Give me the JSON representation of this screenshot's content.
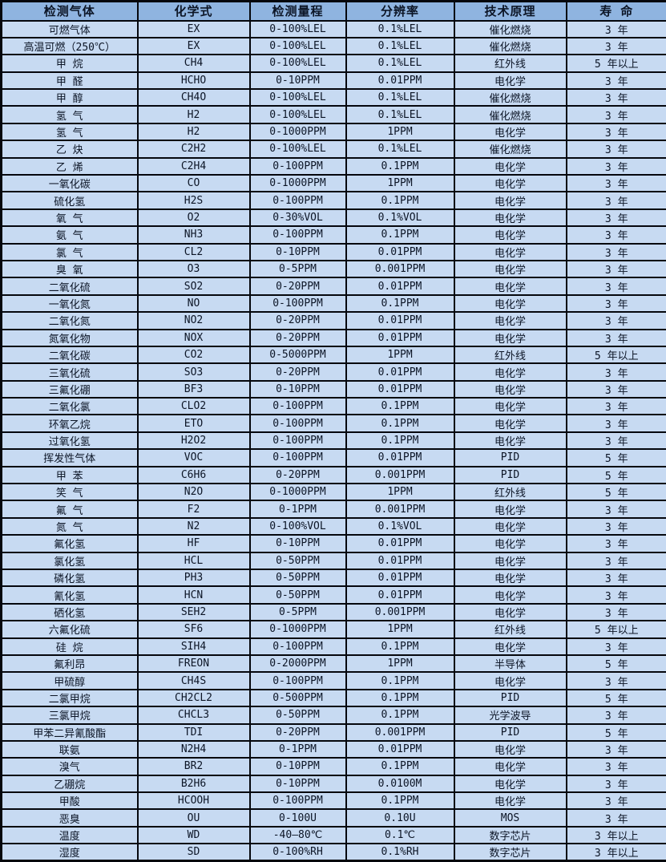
{
  "colors": {
    "header_bg": "#8fb4e0",
    "row_bg": "#c7daf2",
    "border": "#05070d",
    "text": "#0c1526"
  },
  "table": {
    "headers": [
      "检测气体",
      "化学式",
      "检测量程",
      "分辨率",
      "技术原理",
      "寿 命"
    ],
    "rows": [
      [
        "可燃气体",
        "EX",
        "0-100%LEL",
        "0.1%LEL",
        "催化燃烧",
        "3 年"
      ],
      [
        "高温可燃（250℃）",
        "EX",
        "0-100%LEL",
        "0.1%LEL",
        "催化燃烧",
        "3 年"
      ],
      [
        "甲 烷",
        "CH4",
        "0-100%LEL",
        "0.1%LEL",
        "红外线",
        "5 年以上"
      ],
      [
        "甲 醛",
        "HCHO",
        "0-10PPM",
        "0.01PPM",
        "电化学",
        "3 年"
      ],
      [
        "甲 醇",
        "CH4O",
        "0-100%LEL",
        "0.1%LEL",
        "催化燃烧",
        "3 年"
      ],
      [
        "氢 气",
        "H2",
        "0-100%LEL",
        "0.1%LEL",
        "催化燃烧",
        "3 年"
      ],
      [
        "氢 气",
        "H2",
        "0-1000PPM",
        "1PPM",
        "电化学",
        "3 年"
      ],
      [
        "乙 炔",
        "C2H2",
        "0-100%LEL",
        "0.1%LEL",
        "催化燃烧",
        "3 年"
      ],
      [
        "乙 烯",
        "C2H4",
        "0-100PPM",
        "0.1PPM",
        "电化学",
        "3 年"
      ],
      [
        "一氧化碳",
        "CO",
        "0-1000PPM",
        "1PPM",
        "电化学",
        "3 年"
      ],
      [
        "硫化氢",
        "H2S",
        "0-100PPM",
        "0.1PPM",
        "电化学",
        "3 年"
      ],
      [
        "氧 气",
        "O2",
        "0-30%VOL",
        "0.1%VOL",
        "电化学",
        "3 年"
      ],
      [
        "氨 气",
        "NH3",
        "0-100PPM",
        "0.1PPM",
        "电化学",
        "3 年"
      ],
      [
        "氯 气",
        "CL2",
        "0-10PPM",
        "0.01PPM",
        "电化学",
        "3 年"
      ],
      [
        "臭 氧",
        "O3",
        "0-5PPM",
        "0.001PPM",
        "电化学",
        "3 年"
      ],
      [
        "二氧化硫",
        "SO2",
        "0-20PPM",
        "0.01PPM",
        "电化学",
        "3 年"
      ],
      [
        "一氧化氮",
        "NO",
        "0-100PPM",
        "0.1PPM",
        "电化学",
        "3 年"
      ],
      [
        "二氧化氮",
        "NO2",
        "0-20PPM",
        "0.01PPM",
        "电化学",
        "3 年"
      ],
      [
        "氮氧化物",
        "NOX",
        "0-20PPM",
        "0.01PPM",
        "电化学",
        "3 年"
      ],
      [
        "二氧化碳",
        "CO2",
        "0-5000PPM",
        "1PPM",
        "红外线",
        "5 年以上"
      ],
      [
        "三氧化硫",
        "SO3",
        "0-20PPM",
        "0.01PPM",
        "电化学",
        "3 年"
      ],
      [
        "三氟化硼",
        "BF3",
        "0-10PPM",
        "0.01PPM",
        "电化学",
        "3 年"
      ],
      [
        "二氧化氯",
        "CLO2",
        "0-100PPM",
        "0.1PPM",
        "电化学",
        "3 年"
      ],
      [
        "环氧乙烷",
        "ETO",
        "0-100PPM",
        "0.1PPM",
        "电化学",
        "3 年"
      ],
      [
        "过氧化氢",
        "H2O2",
        "0-100PPM",
        "0.1PPM",
        "电化学",
        "3 年"
      ],
      [
        "挥发性气体",
        "VOC",
        "0-100PPM",
        "0.01PPM",
        "PID",
        "5 年"
      ],
      [
        "甲 苯",
        "C6H6",
        "0-20PPM",
        "0.001PPM",
        "PID",
        "5 年"
      ],
      [
        "笑 气",
        "N2O",
        "0-1000PPM",
        "1PPM",
        "红外线",
        "5 年"
      ],
      [
        "氟 气",
        "F2",
        "0-1PPM",
        "0.001PPM",
        "电化学",
        "3 年"
      ],
      [
        "氮 气",
        "N2",
        "0-100%VOL",
        "0.1%VOL",
        "电化学",
        "3 年"
      ],
      [
        "氟化氢",
        "HF",
        "0-10PPM",
        "0.01PPM",
        "电化学",
        "3 年"
      ],
      [
        "氯化氢",
        "HCL",
        "0-50PPM",
        "0.01PPM",
        "电化学",
        "3 年"
      ],
      [
        "磷化氢",
        "PH3",
        "0-50PPM",
        "0.01PPM",
        "电化学",
        "3 年"
      ],
      [
        "氰化氢",
        "HCN",
        "0-50PPM",
        "0.01PPM",
        "电化学",
        "3 年"
      ],
      [
        "硒化氢",
        "SEH2",
        "0-5PPM",
        "0.001PPM",
        "电化学",
        "3 年"
      ],
      [
        "六氟化硫",
        "SF6",
        "0-1000PPM",
        "1PPM",
        "红外线",
        "5 年以上"
      ],
      [
        "硅 烷",
        "SIH4",
        "0-100PPM",
        "0.1PPM",
        "电化学",
        "3 年"
      ],
      [
        "氟利昂",
        "FREON",
        "0-2000PPM",
        "1PPM",
        "半导体",
        "5 年"
      ],
      [
        "甲硫醇",
        "CH4S",
        "0-100PPM",
        "0.1PPM",
        "电化学",
        "3 年"
      ],
      [
        "二氯甲烷",
        "CH2CL2",
        "0-500PPM",
        "0.1PPM",
        "PID",
        "5 年"
      ],
      [
        "三氯甲烷",
        "CHCL3",
        "0-50PPM",
        "0.1PPM",
        "光学波导",
        "3 年"
      ],
      [
        "甲苯二异氰酸酯",
        "TDI",
        "0-20PPM",
        "0.001PPM",
        "PID",
        "5 年"
      ],
      [
        "联氨",
        "N2H4",
        "0-1PPM",
        "0.01PPM",
        "电化学",
        "3 年"
      ],
      [
        "溴气",
        "BR2",
        "0-10PPM",
        "0.1PPM",
        "电化学",
        "3 年"
      ],
      [
        "乙硼烷",
        "B2H6",
        "0-10PPM",
        "0.0100M",
        "电化学",
        "3 年"
      ],
      [
        "甲酸",
        "HCOOH",
        "0-100PPM",
        "0.1PPM",
        "电化学",
        "3 年"
      ],
      [
        "恶臭",
        "OU",
        "0-100U",
        "0.10U",
        "MOS",
        "3 年"
      ],
      [
        "温度",
        "WD",
        "-40—80℃",
        "0.1℃",
        "数字芯片",
        "3 年以上"
      ],
      [
        "湿度",
        "SD",
        "0-100%RH",
        "0.1%RH",
        "数字芯片",
        "3 年以上"
      ]
    ]
  }
}
